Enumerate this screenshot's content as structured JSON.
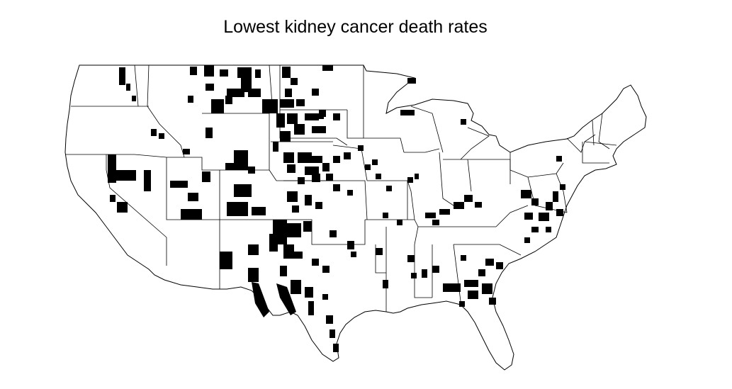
{
  "title": "Lowest kidney cancer death rates",
  "colors": {
    "background": "#ffffff",
    "outline": "#000000",
    "highlight": "#000000"
  }
}
